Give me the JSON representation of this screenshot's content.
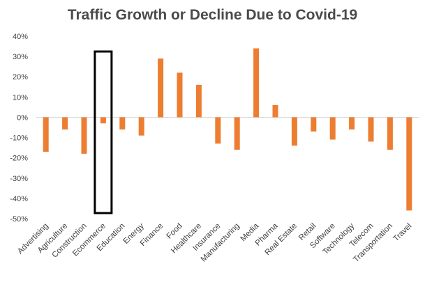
{
  "chart_data": {
    "type": "bar",
    "title": "Traffic Growth or Decline Due to Covid-19",
    "xlabel": "",
    "ylabel": "",
    "ylim": [
      -50,
      40
    ],
    "grid": false,
    "y_ticks": [
      "40%",
      "30%",
      "20%",
      "10%",
      "0%",
      "-10%",
      "-20%",
      "-30%",
      "-40%",
      "-50%"
    ],
    "categories": [
      "Advertising",
      "Agriculture",
      "Construction",
      "Ecommerce",
      "Education",
      "Energy",
      "Finance",
      "Food",
      "Healthcare",
      "Insurance",
      "Manufacturing",
      "Media",
      "Pharma",
      "Real Estate",
      "Retail",
      "Software",
      "Technology",
      "Telecom",
      "Transportation",
      "Travel"
    ],
    "values": [
      -17,
      -6,
      -18,
      -3,
      -6,
      -9,
      29,
      22,
      16,
      -13,
      -16,
      34,
      6,
      -14,
      -7,
      -11,
      -6,
      -12,
      -16,
      -46
    ],
    "bar_color": "#ed7d31",
    "highlight": {
      "category": "Ecommerce",
      "outline_color": "#000000"
    }
  }
}
